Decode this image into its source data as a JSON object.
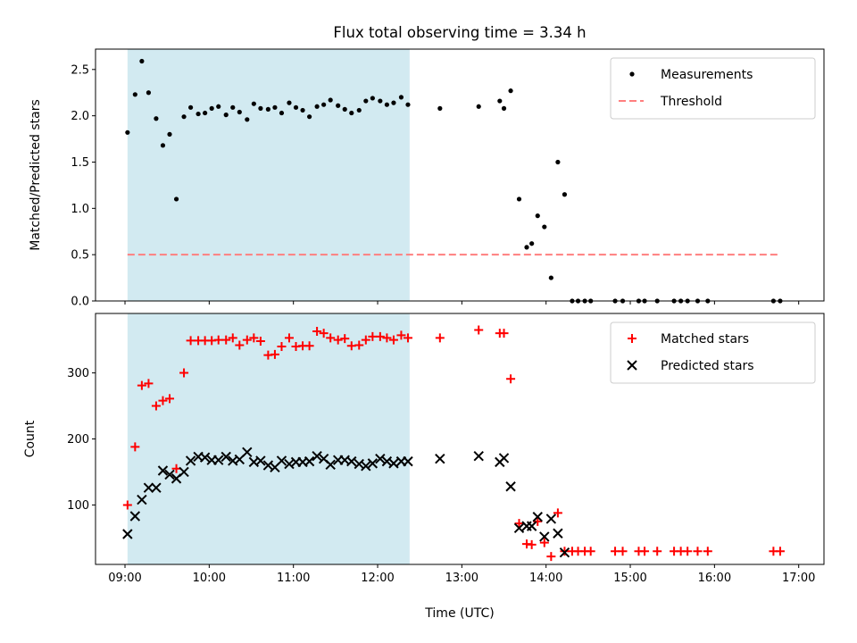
{
  "chart_data": {
    "type": "scatter",
    "title": "Flux total observing time = 3.34 h",
    "colors": {
      "measurements": "#000000",
      "threshold": "#ff7f7f",
      "matched": "#ff0000",
      "predicted": "#000000",
      "shaded_span": "#add8e6"
    },
    "xlabel": "Time (UTC)",
    "xaxis": {
      "unit": "hours since 00:00 UTC",
      "lim": [
        8.65,
        17.3
      ],
      "ticks": [
        9,
        10,
        11,
        12,
        13,
        14,
        15,
        16,
        17
      ],
      "tick_labels": [
        "09:00",
        "10:00",
        "11:00",
        "12:00",
        "13:00",
        "14:00",
        "15:00",
        "16:00",
        "17:00"
      ]
    },
    "shaded_span": [
      9.03,
      12.38
    ],
    "panels": [
      {
        "ylabel": "Matched/Predicted stars",
        "ylim": [
          0,
          2.72
        ],
        "yticks": [
          0.0,
          0.5,
          1.0,
          1.5,
          2.0,
          2.5
        ],
        "ytick_labels": [
          "0.0",
          "0.5",
          "1.0",
          "1.5",
          "2.0",
          "2.5"
        ],
        "legend_position": "top-right",
        "series": [
          {
            "name": "Measurements",
            "kind": "dots",
            "x": [
              9.03,
              9.12,
              9.2,
              9.28,
              9.37,
              9.45,
              9.53,
              9.61,
              9.7,
              9.78,
              9.87,
              9.95,
              10.03,
              10.11,
              10.2,
              10.28,
              10.36,
              10.45,
              10.53,
              10.61,
              10.7,
              10.78,
              10.86,
              10.95,
              11.03,
              11.11,
              11.19,
              11.28,
              11.36,
              11.44,
              11.53,
              11.61,
              11.69,
              11.78,
              11.86,
              11.94,
              12.03,
              12.11,
              12.19,
              12.28,
              12.36,
              12.74,
              13.2,
              13.45,
              13.5,
              13.58,
              13.68,
              13.77,
              13.83,
              13.9,
              13.98,
              14.06,
              14.14,
              14.22,
              14.31,
              14.38,
              14.46,
              14.53,
              14.82,
              14.91,
              15.1,
              15.17,
              15.32,
              15.52,
              15.6,
              15.68,
              15.8,
              15.92,
              16.7,
              16.78
            ],
            "y": [
              1.82,
              2.23,
              2.59,
              2.25,
              1.97,
              1.68,
              1.8,
              1.1,
              1.99,
              2.09,
              2.02,
              2.03,
              2.08,
              2.1,
              2.01,
              2.09,
              2.04,
              1.96,
              2.13,
              2.08,
              2.07,
              2.09,
              2.03,
              2.14,
              2.09,
              2.06,
              1.99,
              2.1,
              2.12,
              2.17,
              2.11,
              2.07,
              2.03,
              2.06,
              2.16,
              2.19,
              2.16,
              2.12,
              2.14,
              2.2,
              2.12,
              2.08,
              2.1,
              2.16,
              2.08,
              2.27,
              1.1,
              0.58,
              0.62,
              0.92,
              0.8,
              0.25,
              1.5,
              1.15,
              0.0,
              0.0,
              0.0,
              0.0,
              0.0,
              0.0,
              0.0,
              0.0,
              0.0,
              0.0,
              0.0,
              0.0,
              0.0,
              0.0,
              0.0,
              0.0
            ]
          },
          {
            "name": "Threshold",
            "kind": "dashed-line",
            "x": [
              9.03,
              16.78
            ],
            "y": [
              0.5,
              0.5
            ]
          }
        ]
      },
      {
        "ylabel": "Count",
        "ylim": [
          10,
          390
        ],
        "yticks": [
          100,
          200,
          300
        ],
        "ytick_labels": [
          "100",
          "200",
          "300"
        ],
        "legend_position": "top-right",
        "series": [
          {
            "name": "Matched stars",
            "kind": "plus",
            "x": [
              9.03,
              9.12,
              9.2,
              9.28,
              9.37,
              9.45,
              9.53,
              9.61,
              9.7,
              9.78,
              9.87,
              9.95,
              10.03,
              10.11,
              10.2,
              10.28,
              10.36,
              10.45,
              10.53,
              10.61,
              10.7,
              10.78,
              10.86,
              10.95,
              11.03,
              11.11,
              11.19,
              11.28,
              11.36,
              11.44,
              11.53,
              11.61,
              11.69,
              11.78,
              11.86,
              11.94,
              12.03,
              12.11,
              12.19,
              12.28,
              12.36,
              12.74,
              13.2,
              13.45,
              13.5,
              13.58,
              13.68,
              13.77,
              13.83,
              13.9,
              13.98,
              14.06,
              14.14,
              14.22,
              14.31,
              14.38,
              14.46,
              14.53,
              14.82,
              14.91,
              15.1,
              15.17,
              15.32,
              15.52,
              15.6,
              15.68,
              15.8,
              15.92,
              16.7,
              16.78
            ],
            "y": [
              100,
              188,
              281,
              284,
              250,
              258,
              261,
              155,
              300,
              349,
              349,
              349,
              349,
              350,
              350,
              353,
              342,
              350,
              353,
              348,
              327,
              328,
              340,
              353,
              340,
              341,
              341,
              363,
              360,
              353,
              350,
              352,
              341,
              342,
              350,
              355,
              355,
              353,
              350,
              357,
              353,
              353,
              365,
              360,
              360,
              291,
              72,
              41,
              40,
              75,
              43,
              22,
              88,
              30,
              30,
              30,
              30,
              30,
              30,
              30,
              30,
              30,
              30,
              30,
              30,
              30,
              30,
              30,
              30,
              30
            ]
          },
          {
            "name": "Predicted stars",
            "kind": "x",
            "x": [
              9.03,
              9.12,
              9.2,
              9.28,
              9.37,
              9.45,
              9.53,
              9.61,
              9.7,
              9.78,
              9.87,
              9.95,
              10.03,
              10.11,
              10.2,
              10.28,
              10.36,
              10.45,
              10.53,
              10.61,
              10.7,
              10.78,
              10.86,
              10.95,
              11.03,
              11.11,
              11.19,
              11.28,
              11.36,
              11.44,
              11.53,
              11.61,
              11.69,
              11.78,
              11.86,
              11.94,
              12.03,
              12.11,
              12.19,
              12.28,
              12.36,
              12.74,
              13.2,
              13.45,
              13.5,
              13.58,
              13.68,
              13.77,
              13.83,
              13.9,
              13.98,
              14.06,
              14.14,
              14.22
            ],
            "y": [
              56,
              83,
              108,
              126,
              126,
              152,
              146,
              140,
              150,
              167,
              173,
              172,
              168,
              168,
              173,
              167,
              169,
              180,
              165,
              167,
              160,
              157,
              167,
              162,
              165,
              165,
              166,
              174,
              170,
              161,
              168,
              168,
              166,
              162,
              159,
              163,
              170,
              166,
              163,
              166,
              166,
              170,
              174,
              165,
              171,
              128,
              65,
              68,
              68,
              82,
              52,
              79,
              57,
              28
            ]
          }
        ]
      }
    ]
  }
}
